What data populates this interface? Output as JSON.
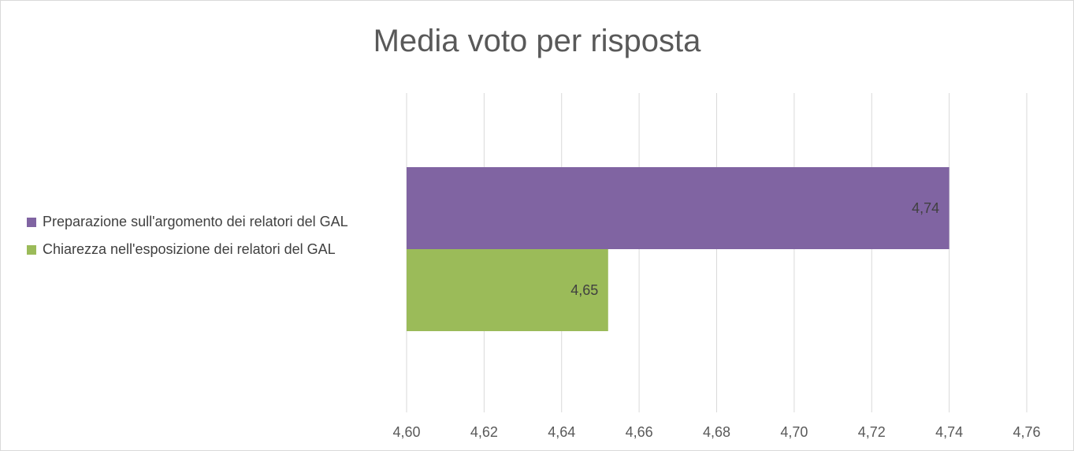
{
  "chart_data": {
    "type": "bar",
    "orientation": "horizontal",
    "title": "Media voto per risposta",
    "xlabel": "",
    "ylabel": "",
    "xlim": [
      4.6,
      4.76
    ],
    "x_ticks": [
      "4,60",
      "4,62",
      "4,64",
      "4,66",
      "4,68",
      "4,70",
      "4,72",
      "4,74",
      "4,76"
    ],
    "grid": true,
    "legend_position": "left",
    "series": [
      {
        "name": "Preparazione sull'argomento dei relatori del GAL",
        "value": 4.74,
        "label": "4,74",
        "color": "#8064a2"
      },
      {
        "name": "Chiarezza nell'esposizione dei relatori del GAL",
        "value": 4.652,
        "label": "4,65",
        "color": "#9bbb59"
      }
    ]
  }
}
